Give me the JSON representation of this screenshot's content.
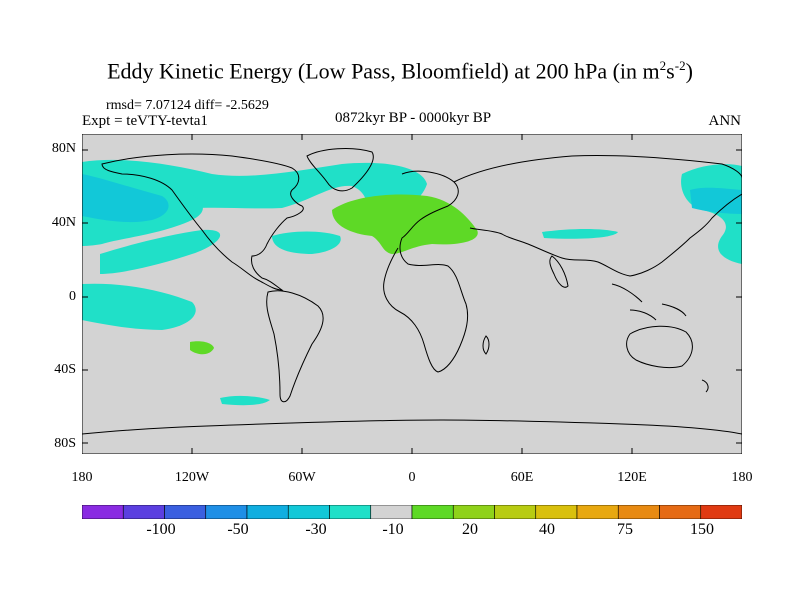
{
  "title": {
    "main": "Eddy Kinetic Energy (Low Pass, Bloomfield) at 200 hPa (in m",
    "sup1": "2",
    "mid": "s",
    "sup2": "-2",
    "end": ")"
  },
  "stats": "rmsd= 7.07124 diff= -2.5629",
  "expt": "Expt = teVTY-tevta1",
  "period": "0872kyr BP - 0000kyr BP",
  "season": "ANN",
  "map": {
    "lat_ticks": [
      "80N",
      "40N",
      "0",
      "40S",
      "80S"
    ],
    "lon_ticks": [
      "180",
      "120W",
      "60W",
      "0",
      "60E",
      "120E",
      "180"
    ],
    "land_color": "#d3d3d3",
    "coast_color": "#000000"
  },
  "colorbar": {
    "colors": [
      "#8a2be2",
      "#5b3fe0",
      "#3a5fe0",
      "#1f8fe6",
      "#10aee0",
      "#12c8d8",
      "#20e0c8",
      "#d3d3d3",
      "#5ed926",
      "#8fd21a",
      "#b8cc12",
      "#d9c00d",
      "#e8a810",
      "#e88a12",
      "#e56a14",
      "#e03a12"
    ],
    "labels": [
      "-100",
      "-50",
      "-30",
      "-10",
      "20",
      "40",
      "75",
      "150"
    ]
  }
}
